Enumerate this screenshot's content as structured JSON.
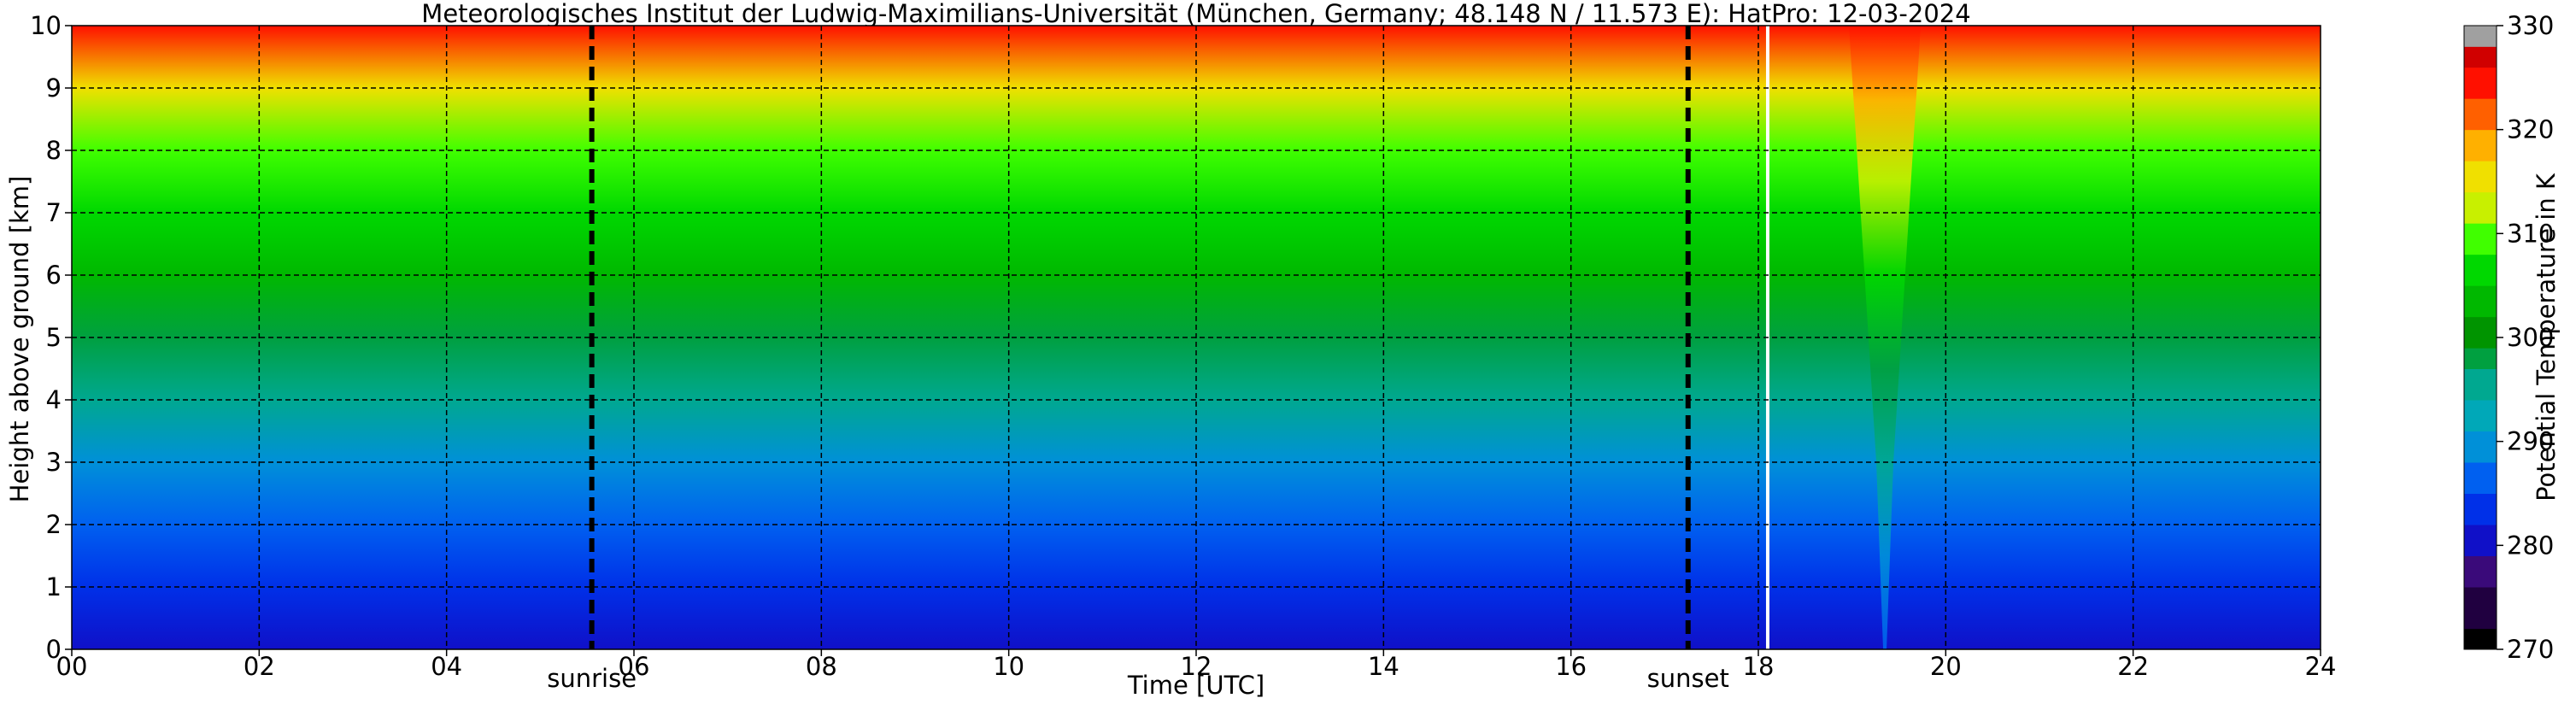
{
  "chart_data": {
    "type": "heatmap",
    "title": "Meteorologisches Institut der Ludwig-Maximilians-Universität (München, Germany; 48.148 N / 11.573 E):    HatPro: 12-03-2024",
    "xlabel": "Time [UTC]",
    "ylabel": "Height above ground [km]",
    "xlim": [
      0,
      24
    ],
    "ylim": [
      0,
      10
    ],
    "x_ticks": [
      0,
      2,
      4,
      6,
      8,
      10,
      12,
      14,
      16,
      18,
      20,
      22,
      24
    ],
    "x_tick_labels": [
      "00",
      "02",
      "04",
      "06",
      "08",
      "10",
      "12",
      "14",
      "16",
      "18",
      "20",
      "22",
      "24"
    ],
    "y_ticks": [
      0,
      1,
      2,
      3,
      4,
      5,
      6,
      7,
      8,
      9,
      10
    ],
    "y_tick_labels": [
      "0",
      "1",
      "2",
      "3",
      "4",
      "5",
      "6",
      "7",
      "8",
      "9",
      "10"
    ],
    "grid": true,
    "colorbar": {
      "label": "Potential Temperature in K",
      "range": [
        270,
        330
      ],
      "ticks": [
        270,
        280,
        290,
        300,
        310,
        320,
        330
      ],
      "tick_labels": [
        "270",
        "280",
        "290",
        "300",
        "310",
        "320",
        "330"
      ]
    },
    "annotations": [
      {
        "label": "sunrise",
        "x": 5.55
      },
      {
        "label": "sunset",
        "x": 17.25
      }
    ],
    "data_gap": {
      "x": 18.1
    },
    "approx_profile": {
      "height_km": [
        0,
        1,
        2,
        3,
        4,
        5,
        6,
        7,
        8,
        9,
        10
      ],
      "potential_temperature_K": [
        280,
        281.5,
        285,
        289,
        293,
        297,
        301,
        305,
        309,
        315,
        324
      ]
    },
    "features": [
      {
        "description": "warm-air intrusion",
        "x": 19.35
      }
    ]
  }
}
